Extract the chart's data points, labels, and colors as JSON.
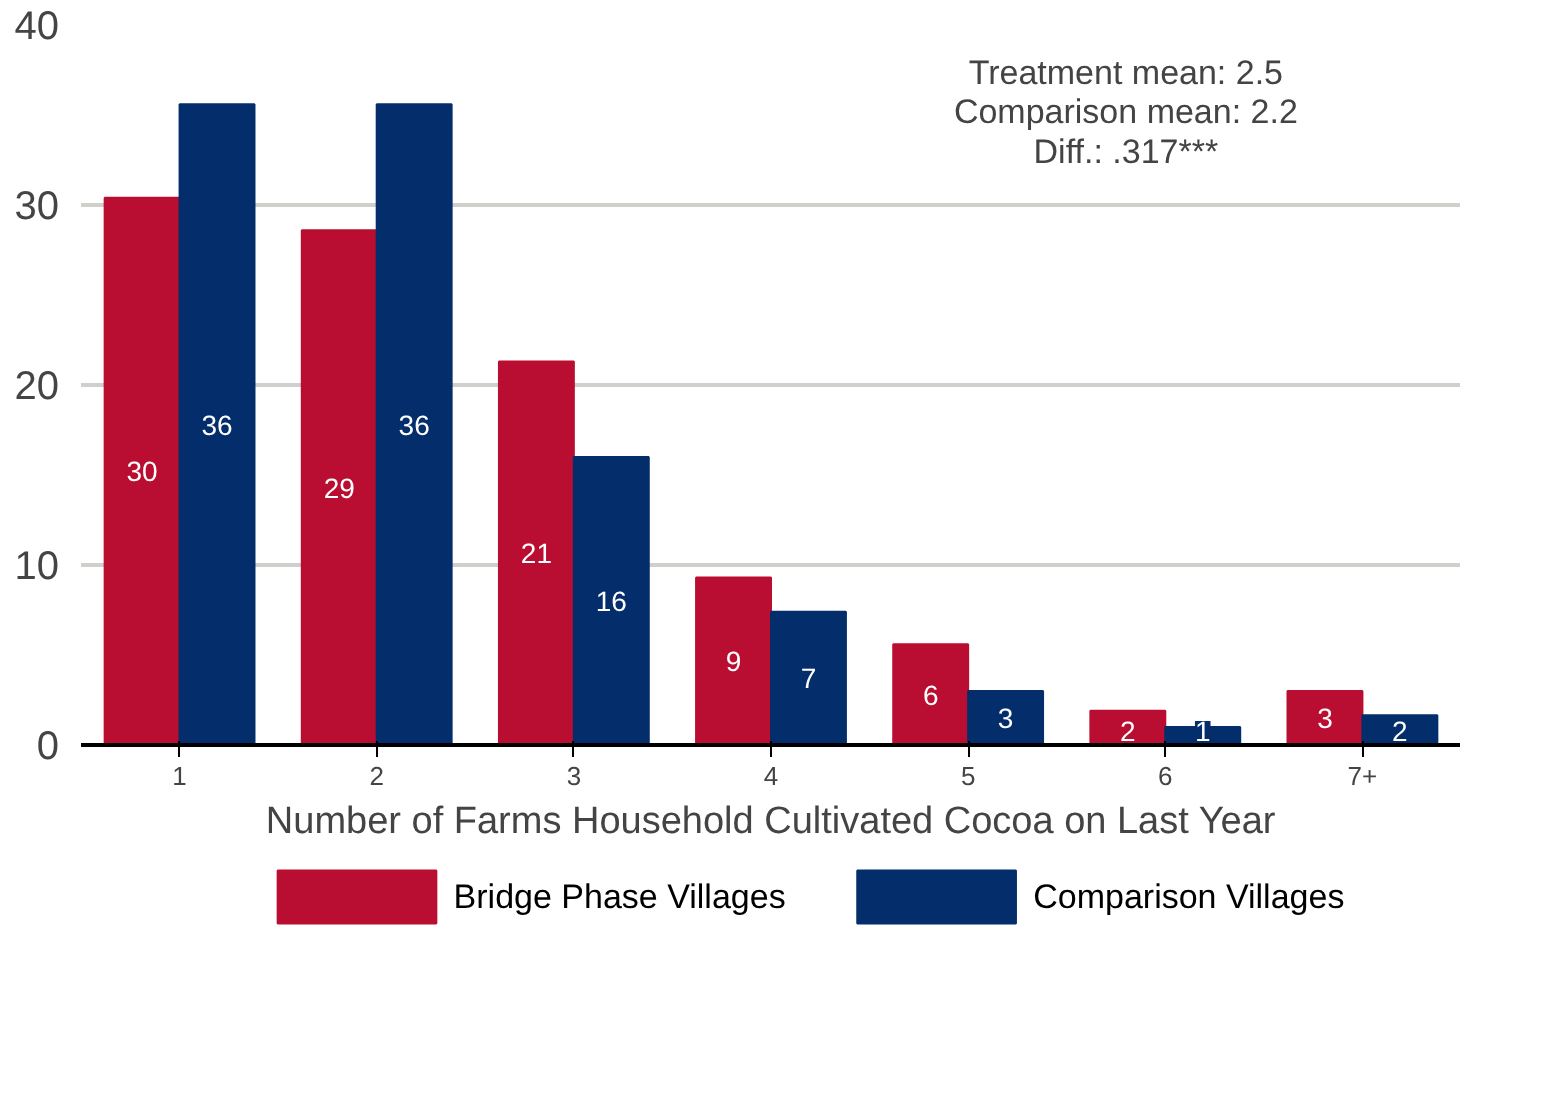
{
  "chart_data": {
    "type": "bar",
    "xlabel": "Number of Farms Household Cultivated Cocoa on Last Year",
    "categories": [
      "1",
      "2",
      "3",
      "4",
      "5",
      "6",
      "7+"
    ],
    "series": [
      {
        "name": "Bridge Phase Villages",
        "color": "#b90e31",
        "values": [
          30.4,
          28.6,
          21.3,
          9.3,
          5.6,
          1.9,
          3.0
        ],
        "value_labels": [
          "30",
          "29",
          "21",
          "9",
          "6",
          "2",
          "3"
        ]
      },
      {
        "name": "Comparison Villages",
        "color": "#032e6b",
        "values": [
          35.6,
          35.6,
          16.0,
          7.4,
          3.0,
          1.0,
          1.65
        ],
        "value_labels": [
          "36",
          "36",
          "16",
          "7",
          "3",
          "1",
          "2"
        ]
      }
    ],
    "ylim": [
      0,
      40
    ],
    "yticks": [
      0,
      10,
      20,
      30,
      40
    ],
    "grid": "y",
    "legend": "bottom",
    "annotations": [
      "Treatment mean: 2.5",
      "Comparison mean: 2.2",
      "Diff.: .317***"
    ]
  }
}
